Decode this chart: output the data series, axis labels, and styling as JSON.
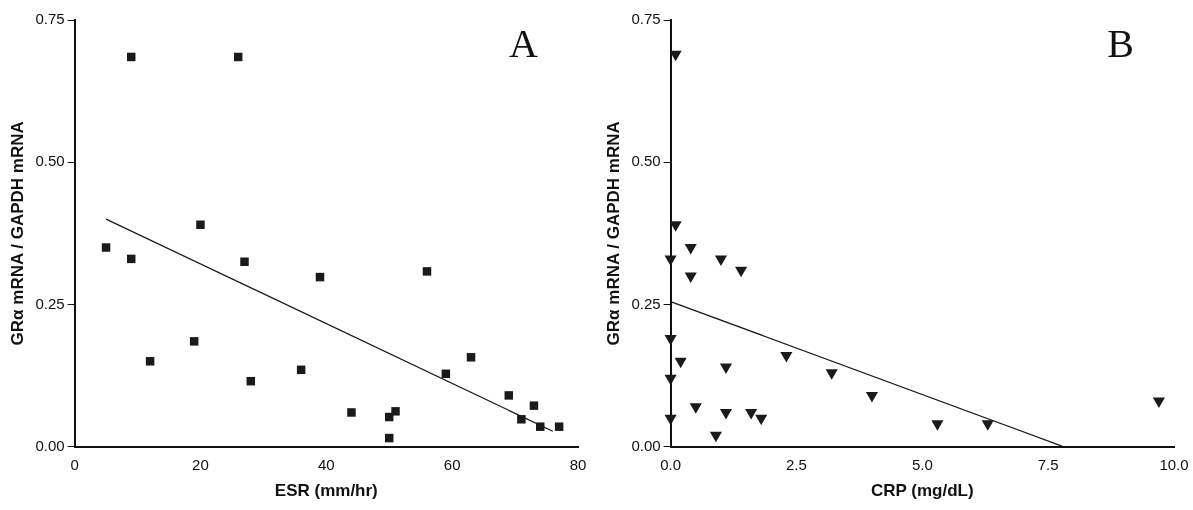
{
  "chart_data": [
    {
      "type": "scatter",
      "xlabel": "ESR (mm/hr)",
      "ylabel": "GRα mRNA / GAPDH mRNA",
      "annotations": [
        "A"
      ],
      "xlim": [
        0,
        80
      ],
      "xticks": [
        0,
        20,
        40,
        60,
        80
      ],
      "ylim": [
        0,
        0.75
      ],
      "yticks": [
        {
          "value": 0,
          "label": "0.00"
        },
        {
          "value": 0.25,
          "label": "0.25"
        },
        {
          "value": 0.5,
          "label": "0.50"
        },
        {
          "value": 0.75,
          "label": "0.75"
        }
      ],
      "series": [
        {
          "marker": "square",
          "color": "#1a1a1a",
          "x": [
            5,
            9,
            9,
            12,
            19,
            20,
            26,
            27,
            28,
            36,
            39,
            44,
            50,
            50,
            51,
            56,
            59,
            63,
            69,
            71,
            73,
            74,
            77
          ],
          "values": [
            0.35,
            0.685,
            0.33,
            0.15,
            0.185,
            0.39,
            0.685,
            0.325,
            0.115,
            0.135,
            0.298,
            0.06,
            0.052,
            0.015,
            0.062,
            0.308,
            0.128,
            0.157,
            0.09,
            0.048,
            0.072,
            0.035,
            0.035
          ]
        },
        {
          "type": "line",
          "marker": "none",
          "color": "#1a1a1a",
          "x": [
            5,
            76
          ],
          "values": [
            0.4,
            0.027
          ]
        }
      ]
    },
    {
      "type": "scatter",
      "xlabel": "CRP (mg/dL)",
      "ylabel": "GRα mRNA / GAPDH mRNA",
      "annotations": [
        "B"
      ],
      "xlim": [
        0,
        10
      ],
      "xticks": [
        {
          "value": 0,
          "label": "0.0"
        },
        {
          "value": 2.5,
          "label": "2.5"
        },
        {
          "value": 5,
          "label": "5.0"
        },
        {
          "value": 7.5,
          "label": "7.5"
        },
        {
          "value": 10,
          "label": "10.0"
        }
      ],
      "ylim": [
        0,
        0.75
      ],
      "yticks": [
        {
          "value": 0,
          "label": "0.00"
        },
        {
          "value": 0.25,
          "label": "0.25"
        },
        {
          "value": 0.5,
          "label": "0.50"
        },
        {
          "value": 0.75,
          "label": "0.75"
        }
      ],
      "series": [
        {
          "marker": "triangle",
          "color": "#1a1a1a",
          "x": [
            0.1,
            0.1,
            0.4,
            0,
            0.4,
            1,
            1.4,
            0,
            0.2,
            1.1,
            2.3,
            3.2,
            4,
            0,
            0,
            0.5,
            1.1,
            1.6,
            1.8,
            0.9,
            5.3,
            6.3,
            9.7
          ],
          "values": [
            0.69,
            0.39,
            0.35,
            0.33,
            0.3,
            0.33,
            0.31,
            0.19,
            0.15,
            0.14,
            0.16,
            0.13,
            0.09,
            0.12,
            0.05,
            0.07,
            0.06,
            0.06,
            0.05,
            0.02,
            0.04,
            0.04,
            0.08
          ]
        },
        {
          "type": "line",
          "marker": "none",
          "color": "#1a1a1a",
          "x": [
            0,
            7.8
          ],
          "values": [
            0.255,
            0
          ]
        }
      ]
    }
  ]
}
